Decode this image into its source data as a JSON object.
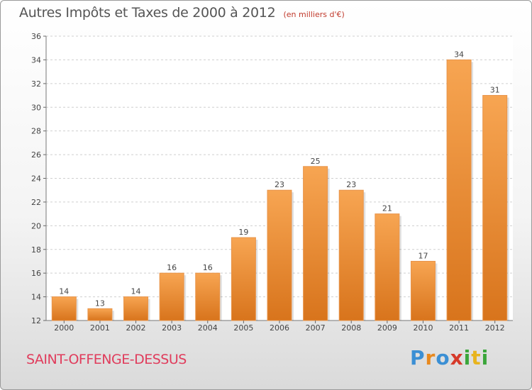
{
  "chart_data": {
    "type": "bar",
    "title": "Autres Impôts et Taxes de 2000 à 2012",
    "unit_label": "(en milliers d'€)",
    "categories": [
      "2000",
      "2001",
      "2002",
      "2003",
      "2004",
      "2005",
      "2006",
      "2007",
      "2008",
      "2009",
      "2010",
      "2011",
      "2012"
    ],
    "values": [
      14,
      13,
      14,
      16,
      16,
      19,
      23,
      25,
      23,
      21,
      17,
      34,
      31
    ],
    "ylim": [
      12,
      36
    ],
    "yticks": [
      12,
      14,
      16,
      18,
      20,
      22,
      24,
      26,
      28,
      30,
      32,
      34,
      36
    ],
    "grid": true,
    "bar_color": "#f0923a"
  },
  "location": "SAINT-OFFENGE-DESSUS",
  "logo": {
    "text": "Proxiti",
    "letters": [
      {
        "ch": "P",
        "color": "#3b8fd4"
      },
      {
        "ch": "r",
        "color": "#e8891e"
      },
      {
        "ch": "o",
        "color": "#3b8fd4"
      },
      {
        "ch": "x",
        "color": "#d63a2a"
      },
      {
        "ch": "i",
        "color": "#3aa63a"
      },
      {
        "ch": "t",
        "color": "#e8b41e"
      },
      {
        "ch": "i",
        "color": "#3aa63a"
      }
    ]
  }
}
